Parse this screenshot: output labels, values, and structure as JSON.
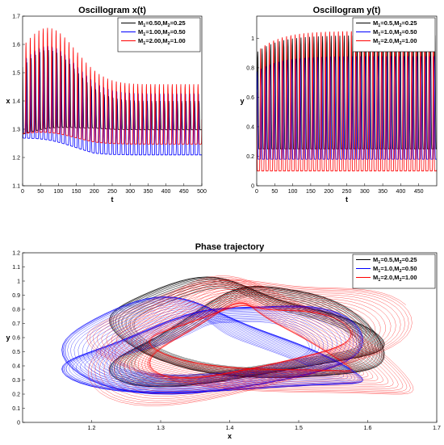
{
  "chart_data": [
    {
      "type": "line",
      "title": "Oscillogram x(t)",
      "xlabel": "t",
      "ylabel": "x",
      "xlim": [
        0,
        500
      ],
      "ylim": [
        1.1,
        1.7
      ],
      "xticks": [
        "0",
        "50",
        "100",
        "150",
        "200",
        "250",
        "300",
        "350",
        "400",
        "450",
        "500"
      ],
      "yticks": [
        "1.1",
        "1.2",
        "1.3",
        "1.4",
        "1.5",
        "1.6",
        "1.7"
      ],
      "legend": "top-right",
      "series": [
        {
          "name": "M1=0.50,M2=0.25",
          "legend_main": "M",
          "legend_parts": [
            [
              "1",
              "=0.50,M"
            ],
            [
              "2",
              "=0.25"
            ]
          ],
          "color": "#000000",
          "period": 12.0,
          "low_start": 1.24,
          "low_end": 1.28,
          "high_peak": 1.58,
          "high_end": 1.4
        },
        {
          "name": "M1=1.00,M2=0.50",
          "legend_main": "M",
          "legend_parts": [
            [
              "1",
              "=1.00,M"
            ],
            [
              "2",
              "=0.50"
            ]
          ],
          "color": "#0000ff",
          "period": 12.0,
          "low_start": 1.22,
          "low_end": 1.17,
          "high_peak": 1.6,
          "high_end": 1.43
        },
        {
          "name": "M1=2.00,M2=1.00",
          "legend_main": "M",
          "legend_parts": [
            [
              "1",
              "=2.00,M"
            ],
            [
              "2",
              "=1.00"
            ]
          ],
          "color": "#ff0000",
          "period": 12.0,
          "low_start": 1.23,
          "low_end": 1.21,
          "high_peak": 1.66,
          "high_end": 1.46
        }
      ]
    },
    {
      "type": "line",
      "title": "Oscillogram y(t)",
      "xlabel": "t",
      "ylabel": "y",
      "xlim": [
        0,
        500
      ],
      "ylim": [
        0,
        1.15
      ],
      "xticks": [
        "0",
        "50",
        "100",
        "150",
        "200",
        "250",
        "300",
        "350",
        "400",
        "450"
      ],
      "yticks": [
        "0",
        "0.2",
        "0.4",
        "0.6",
        "0.8",
        "1"
      ],
      "legend": "top-right",
      "series": [
        {
          "name": "M1=0.5,M2=0.25",
          "legend_main": "M",
          "legend_parts": [
            [
              "1",
              "=0.5,M"
            ],
            [
              "2",
              "=0.25"
            ]
          ],
          "color": "#000000",
          "low": 0.25,
          "high": 1.02
        },
        {
          "name": "M1=1.0,M2=0.50",
          "legend_main": "M",
          "legend_parts": [
            [
              "1",
              "=1.0,M"
            ],
            [
              "2",
              "=0.50"
            ]
          ],
          "color": "#0000ff",
          "low": 0.18,
          "high": 0.88
        },
        {
          "name": "M1=2.0,M2=1.00",
          "legend_main": "M",
          "legend_parts": [
            [
              "1",
              "=2.0,M"
            ],
            [
              "2",
              "=1.00"
            ]
          ],
          "color": "#ff0000",
          "low": 0.1,
          "high": 1.06
        }
      ]
    },
    {
      "type": "line",
      "title": "Phase trajectory",
      "xlabel": "x",
      "ylabel": "y",
      "xlim": [
        1.1,
        1.7
      ],
      "ylim": [
        0,
        1.2
      ],
      "xticks": [
        "1.2",
        "1.3",
        "1.4",
        "1.5",
        "1.6",
        "1.7"
      ],
      "yticks": [
        "0",
        "0.1",
        "0.2",
        "0.3",
        "0.4",
        "0.5",
        "0.6",
        "0.7",
        "0.8",
        "0.9",
        "1",
        "1.1",
        "1.2"
      ],
      "legend": "top-right",
      "series": [
        {
          "name": "M1=0.5,M2=0.25",
          "legend_main": "M",
          "legend_parts": [
            [
              "1",
              "=0.5,M"
            ],
            [
              "2",
              "=0.25"
            ]
          ],
          "color": "#000000",
          "center": [
            1.4,
            0.62
          ],
          "x_range": [
            1.24,
            1.61
          ],
          "y_range": [
            0.25,
            1.03
          ]
        },
        {
          "name": "M1=1.0,M2=0.50",
          "legend_main": "M",
          "legend_parts": [
            [
              "1",
              "=1.0,M"
            ],
            [
              "2",
              "=0.50"
            ]
          ],
          "color": "#0000ff",
          "center": [
            1.36,
            0.58
          ],
          "x_range": [
            1.17,
            1.58
          ],
          "y_range": [
            0.18,
            0.89
          ]
        },
        {
          "name": "M1=2.0,M2=1.00",
          "legend_main": "M",
          "legend_parts": [
            [
              "1",
              "=2.0,M"
            ],
            [
              "2",
              "=1.00"
            ]
          ],
          "color": "#ff0000",
          "center": [
            1.42,
            0.55
          ],
          "x_range": [
            1.2,
            1.66
          ],
          "y_range": [
            0.1,
            1.07
          ]
        }
      ]
    }
  ]
}
